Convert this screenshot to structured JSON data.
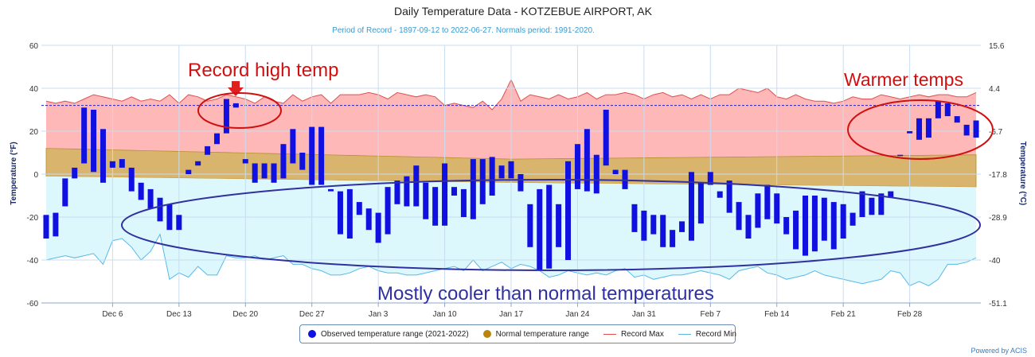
{
  "chart_data": {
    "type": "bar",
    "title": "Daily Temperature Data - KOTZEBUE AIRPORT, AK",
    "subtitle": "Period of Record - 1897-09-12 to 2022-06-27. Normals period: 1991-2020.",
    "ylabel_left": "Temperature (°F)",
    "ylabel_right": "Temperature (°C)",
    "ylim": [
      -60,
      60
    ],
    "y_ticks_left": [
      -60,
      -40,
      -20,
      0,
      20,
      40,
      60
    ],
    "y_ticks_right": [
      "-51.1",
      "-40",
      "-28.9",
      "-17.8",
      "-6.7",
      "4.4",
      "15.6"
    ],
    "x_ticks": [
      {
        "day": 7,
        "label": "Dec 6"
      },
      {
        "day": 14,
        "label": "Dec 13"
      },
      {
        "day": 21,
        "label": "Dec 20"
      },
      {
        "day": 28,
        "label": "Dec 27"
      },
      {
        "day": 35,
        "label": "Jan 3"
      },
      {
        "day": 42,
        "label": "Jan 10"
      },
      {
        "day": 49,
        "label": "Jan 17"
      },
      {
        "day": 56,
        "label": "Jan 24"
      },
      {
        "day": 63,
        "label": "Jan 31"
      },
      {
        "day": 70,
        "label": "Feb 7"
      },
      {
        "day": 77,
        "label": "Feb 14"
      },
      {
        "day": 84,
        "label": "Feb 21"
      },
      {
        "day": 91,
        "label": "Feb 28"
      }
    ],
    "observed_lows": [
      -30,
      -29,
      -15,
      -2,
      5,
      1,
      -4,
      3,
      3,
      -8,
      -12,
      -16,
      -22,
      -26,
      -26,
      0,
      4,
      9,
      14,
      19,
      31,
      5,
      -4,
      -2,
      -4,
      -2,
      5,
      2,
      -5,
      -5,
      -7,
      -28,
      -30,
      -19,
      -26,
      -32,
      -28,
      -14,
      -15,
      -15,
      -21,
      -24,
      -24,
      -10,
      -20,
      -21,
      -14,
      -10,
      -2,
      -2,
      -8,
      -34,
      -45,
      -44,
      -34,
      -40,
      -7,
      -8,
      -9,
      4,
      0,
      2,
      -27,
      -31,
      -28,
      -34,
      -34,
      -27,
      -31,
      -23,
      -5,
      -11,
      -18,
      -26,
      -30,
      -25,
      -21,
      -23,
      -28,
      -35,
      -38,
      -36,
      -31,
      -35,
      -30,
      -24,
      -20,
      -19,
      -19,
      -11,
      9,
      19,
      16,
      17,
      26,
      27,
      24,
      18,
      17
    ],
    "observed_highs": [
      -19,
      -18,
      -2,
      3,
      31,
      30,
      21,
      6,
      7,
      3,
      -4,
      -7,
      -11,
      -14,
      -19,
      2,
      6,
      13,
      19,
      35,
      33,
      7,
      5,
      5,
      5,
      14,
      21,
      10,
      22,
      22,
      -8,
      -8,
      -7,
      -13,
      -16,
      -18,
      -6,
      -3,
      -1,
      4,
      -4,
      -6,
      5,
      -6,
      -7,
      7,
      7,
      8,
      4,
      6,
      0,
      -14,
      -7,
      -5,
      -14,
      6,
      14,
      21,
      9,
      30,
      2,
      -7,
      -14,
      -17,
      -19,
      -19,
      -26,
      -22,
      1,
      -4,
      1,
      -8,
      -3,
      -13,
      -19,
      -9,
      -5,
      -9,
      -20,
      -17,
      -10,
      -10,
      -11,
      -13,
      -14,
      -18,
      -8,
      -11,
      -9,
      -8,
      9,
      20,
      26,
      26,
      34,
      33,
      27,
      23,
      25
    ],
    "record_max": [
      34,
      33,
      34,
      33,
      35,
      37,
      36,
      35,
      34,
      36,
      34,
      35,
      34,
      37,
      33,
      37,
      36,
      34,
      35,
      37,
      36,
      35,
      33,
      36,
      34,
      33,
      37,
      34,
      36,
      37,
      33,
      37,
      37,
      37,
      38,
      37,
      35,
      38,
      37,
      36,
      37,
      36,
      32,
      33,
      32,
      31,
      34,
      30,
      35,
      44,
      34,
      37,
      36,
      35,
      37,
      35,
      36,
      38,
      35,
      37,
      37,
      38,
      37,
      35,
      37,
      38,
      36,
      37,
      35,
      37,
      35,
      37,
      37,
      40,
      39,
      38,
      40,
      36,
      35,
      37,
      35,
      34,
      34,
      33,
      34,
      36,
      35,
      35,
      37,
      36,
      35,
      36,
      37,
      36,
      37,
      37,
      36,
      36,
      38
    ],
    "record_min": [
      -40,
      -39,
      -38,
      -39,
      -38,
      -37,
      -42,
      -31,
      -30,
      -34,
      -40,
      -36,
      -28,
      -49,
      -46,
      -48,
      -43,
      -47,
      -47,
      -38,
      -39,
      -39,
      -38,
      -40,
      -39,
      -38,
      -42,
      -42,
      -44,
      -45,
      -47,
      -47,
      -46,
      -44,
      -43,
      -45,
      -46,
      -46,
      -47,
      -47,
      -46,
      -45,
      -44,
      -43,
      -45,
      -40,
      -45,
      -43,
      -41,
      -44,
      -42,
      -43,
      -45,
      -48,
      -47,
      -45,
      -46,
      -47,
      -46,
      -47,
      -45,
      -44,
      -48,
      -47,
      -49,
      -48,
      -47,
      -47,
      -46,
      -45,
      -46,
      -47,
      -49,
      -45,
      -44,
      -43,
      -46,
      -47,
      -49,
      -48,
      -47,
      -45,
      -47,
      -48,
      -49,
      -50,
      -51,
      -50,
      -49,
      -45,
      -46,
      -52,
      -50,
      -52,
      -49,
      -42,
      -42,
      -41,
      -39
    ],
    "normal_high_start": 12,
    "normal_high_mid": 7,
    "normal_high_end": 9,
    "normal_low_start": -1,
    "normal_low_mid": -4,
    "normal_low_end": -6,
    "record_max_reference": 32,
    "legend": {
      "observed": "Observed temperature range (2021-2022)",
      "normal": "Normal temperature range",
      "record_max": "Record Max",
      "record_min": "Record Min"
    }
  },
  "annotations": {
    "record_high": "Record high temp",
    "warmer": "Warmer temps",
    "cooler": "Mostly cooler than normal temperatures"
  },
  "colors": {
    "observed": "#1010e0",
    "normal_fill": "#d9b46c",
    "normal_legend": "#b8860b",
    "record_max_fill": "#ffb8b8",
    "record_max_line": "#e05050",
    "record_min_fill": "#dcf8fc",
    "record_min_line": "#5ab8e8",
    "annotation_red": "#d01010",
    "annotation_blue": "#3030a0"
  },
  "footer": {
    "powered_by": "Powered by ACIS"
  }
}
